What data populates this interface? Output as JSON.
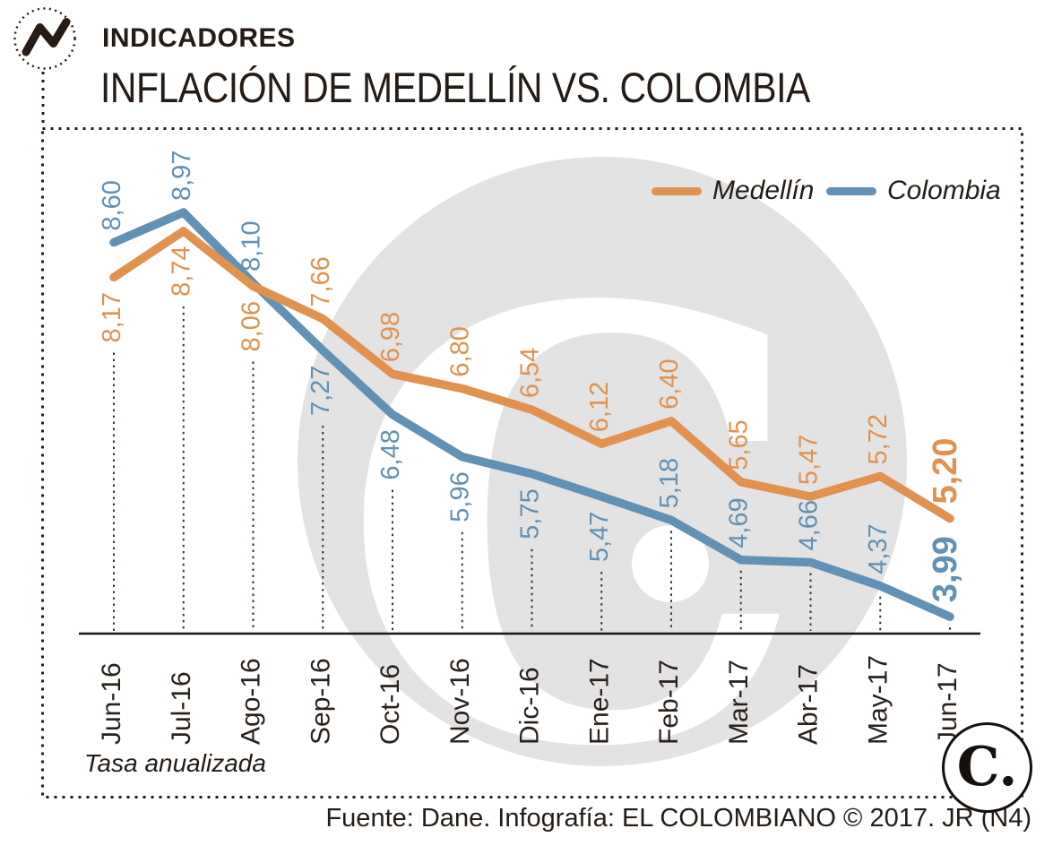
{
  "header": {
    "kicker": "INDICADORES",
    "title": "INFLACIÓN DE MEDELLÍN VS. COLOMBIA"
  },
  "note": "Tasa anualizada",
  "footer": "Fuente: Dane. Infografía: EL COLOMBIANO © 2017. JR (N4)",
  "brand": {
    "logo_letter": "C.",
    "watermark_letter": "C"
  },
  "colors": {
    "medellin_orange": "#E0924E",
    "colombia_blue": "#6191B4",
    "ink": "#241C15",
    "watermark_gray": "#E4E3E3",
    "dotted_line": "#3A322C"
  },
  "chart_data": {
    "type": "line",
    "title": "INFLACIÓN DE MEDELLÍN VS. COLOMBIA",
    "note": "Tasa anualizada",
    "categories": [
      "Jun-16",
      "Jul-16",
      "Ago-16",
      "Sep-16",
      "Oct-16",
      "Nov-16",
      "Dic-16",
      "Ene-17",
      "Feb-17",
      "Mar-17",
      "Abr-17",
      "May-17",
      "Jun-17"
    ],
    "series": [
      {
        "name": "Medellín",
        "color": "#E0924E",
        "values": [
          8.17,
          8.74,
          8.06,
          7.66,
          6.98,
          6.8,
          6.54,
          6.12,
          6.4,
          5.65,
          5.47,
          5.72,
          5.2
        ]
      },
      {
        "name": "Colombia",
        "color": "#6191B4",
        "values": [
          8.6,
          8.97,
          8.1,
          7.27,
          6.48,
          5.96,
          5.75,
          5.47,
          5.18,
          4.69,
          4.66,
          4.37,
          3.99
        ]
      }
    ],
    "ylim": [
      3.5,
      9.2
    ],
    "grid": false,
    "value_labels": true,
    "decimal_separator": ",",
    "legend_position": "top-right"
  }
}
